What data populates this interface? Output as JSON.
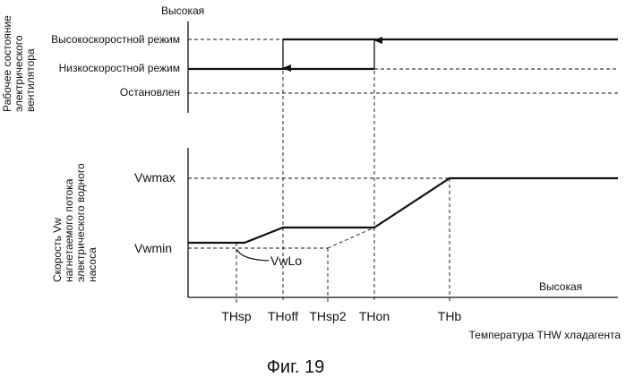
{
  "top_panel": {
    "axis_top_label": "Высокая",
    "y_title_lines": [
      "Рабочее состояние",
      "электрического",
      "вентилятора"
    ],
    "levels": {
      "high": "Высокоскоростной режим",
      "low": "Низкоскоростной режим",
      "stop": "Остановлен"
    }
  },
  "bottom_panel": {
    "y_title_lines": [
      "Скорость Vw",
      "нагнетаемого потока",
      "электрического водного",
      "насоса"
    ],
    "levels": {
      "vwmax": "Vwmax",
      "vwmin": "Vwmin",
      "vwlo": "VwLo"
    },
    "axis_right_label": "Высокая"
  },
  "x_ticks": [
    "THsp",
    "THoff",
    "THsp2",
    "THon",
    "THb"
  ],
  "x_axis_title": "Температура THW хладагента",
  "caption": "Фиг. 19"
}
